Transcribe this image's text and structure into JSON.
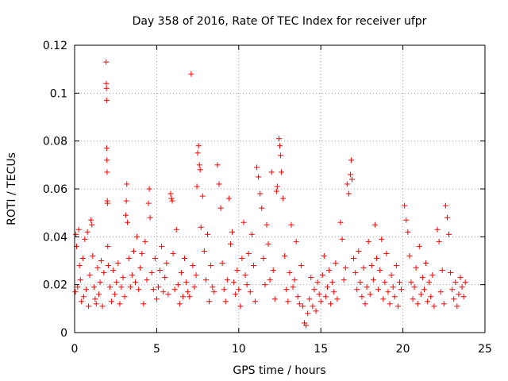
{
  "chart_data": {
    "type": "scatter",
    "title": "Day 358 of 2016, Rate Of TEC Index for receiver ufpr",
    "xlabel": "GPS time / hours",
    "ylabel": "ROTI / TECUs",
    "xlim": [
      0,
      25
    ],
    "ylim": [
      0,
      0.12
    ],
    "x_ticks": [
      0,
      5,
      10,
      15,
      20,
      25
    ],
    "x_tick_labels": [
      "0",
      "5",
      "10",
      "15",
      "20",
      "25"
    ],
    "y_ticks": [
      0,
      0.02,
      0.04,
      0.06,
      0.08,
      0.1,
      0.12
    ],
    "y_tick_labels": [
      "0",
      "0.02",
      "0.04",
      "0.06",
      "0.08",
      "0.1",
      "0.12"
    ],
    "grid": true,
    "marker": "+",
    "series": [
      {
        "name": "ROTI",
        "color": "#ff0000",
        "points": [
          [
            0.05,
            0.017
          ],
          [
            0.08,
            0.041
          ],
          [
            0.12,
            0.036
          ],
          [
            0.18,
            0.019
          ],
          [
            0.25,
            0.043
          ],
          [
            0.3,
            0.028
          ],
          [
            0.35,
            0.022
          ],
          [
            0.42,
            0.013
          ],
          [
            0.5,
            0.031
          ],
          [
            0.55,
            0.015
          ],
          [
            0.62,
            0.039
          ],
          [
            0.7,
            0.018
          ],
          [
            0.78,
            0.042
          ],
          [
            0.85,
            0.011
          ],
          [
            0.92,
            0.024
          ],
          [
            1.0,
            0.047
          ],
          [
            1.05,
            0.045
          ],
          [
            1.1,
            0.032
          ],
          [
            1.18,
            0.019
          ],
          [
            1.25,
            0.014
          ],
          [
            1.32,
            0.012
          ],
          [
            1.4,
            0.027
          ],
          [
            1.48,
            0.016
          ],
          [
            1.55,
            0.021
          ],
          [
            1.62,
            0.03
          ],
          [
            1.7,
            0.011
          ],
          [
            1.78,
            0.025
          ],
          [
            1.92,
            0.113
          ],
          [
            1.93,
            0.104
          ],
          [
            1.94,
            0.102
          ],
          [
            1.95,
            0.097
          ],
          [
            1.96,
            0.077
          ],
          [
            1.97,
            0.072
          ],
          [
            1.98,
            0.067
          ],
          [
            1.99,
            0.055
          ],
          [
            2.0,
            0.054
          ],
          [
            2.02,
            0.036
          ],
          [
            2.05,
            0.028
          ],
          [
            2.15,
            0.019
          ],
          [
            2.25,
            0.013
          ],
          [
            2.35,
            0.026
          ],
          [
            2.45,
            0.016
          ],
          [
            2.55,
            0.021
          ],
          [
            2.65,
            0.029
          ],
          [
            2.75,
            0.012
          ],
          [
            2.85,
            0.019
          ],
          [
            2.95,
            0.023
          ],
          [
            3.05,
            0.015
          ],
          [
            3.12,
            0.049
          ],
          [
            3.15,
            0.055
          ],
          [
            3.18,
            0.062
          ],
          [
            3.22,
            0.046
          ],
          [
            3.3,
            0.031
          ],
          [
            3.4,
            0.019
          ],
          [
            3.5,
            0.024
          ],
          [
            3.6,
            0.034
          ],
          [
            3.7,
            0.021
          ],
          [
            3.8,
            0.04
          ],
          [
            3.9,
            0.018
          ],
          [
            4.0,
            0.027
          ],
          [
            4.1,
            0.033
          ],
          [
            4.2,
            0.012
          ],
          [
            4.3,
            0.038
          ],
          [
            4.4,
            0.022
          ],
          [
            4.5,
            0.054
          ],
          [
            4.55,
            0.06
          ],
          [
            4.6,
            0.048
          ],
          [
            4.7,
            0.025
          ],
          [
            4.8,
            0.018
          ],
          [
            4.9,
            0.031
          ],
          [
            5.0,
            0.014
          ],
          [
            5.1,
            0.019
          ],
          [
            5.2,
            0.026
          ],
          [
            5.3,
            0.036
          ],
          [
            5.4,
            0.017
          ],
          [
            5.5,
            0.023
          ],
          [
            5.6,
            0.029
          ],
          [
            5.7,
            0.016
          ],
          [
            5.85,
            0.058
          ],
          [
            5.9,
            0.056
          ],
          [
            5.95,
            0.055
          ],
          [
            6.0,
            0.033
          ],
          [
            6.1,
            0.018
          ],
          [
            6.2,
            0.043
          ],
          [
            6.3,
            0.02
          ],
          [
            6.4,
            0.012
          ],
          [
            6.5,
            0.025
          ],
          [
            6.6,
            0.015
          ],
          [
            6.7,
            0.031
          ],
          [
            6.8,
            0.021
          ],
          [
            6.9,
            0.017
          ],
          [
            7.0,
            0.015
          ],
          [
            7.1,
            0.108
          ],
          [
            7.2,
            0.028
          ],
          [
            7.3,
            0.019
          ],
          [
            7.4,
            0.024
          ],
          [
            7.45,
            0.061
          ],
          [
            7.5,
            0.075
          ],
          [
            7.55,
            0.078
          ],
          [
            7.6,
            0.07
          ],
          [
            7.65,
            0.068
          ],
          [
            7.7,
            0.044
          ],
          [
            7.8,
            0.057
          ],
          [
            7.9,
            0.034
          ],
          [
            8.0,
            0.022
          ],
          [
            8.1,
            0.041
          ],
          [
            8.2,
            0.013
          ],
          [
            8.3,
            0.028
          ],
          [
            8.4,
            0.019
          ],
          [
            8.5,
            0.017
          ],
          [
            8.7,
            0.07
          ],
          [
            8.8,
            0.062
          ],
          [
            8.9,
            0.052
          ],
          [
            9.0,
            0.029
          ],
          [
            9.1,
            0.018
          ],
          [
            9.2,
            0.013
          ],
          [
            9.3,
            0.022
          ],
          [
            9.4,
            0.056
          ],
          [
            9.5,
            0.037
          ],
          [
            9.6,
            0.042
          ],
          [
            9.7,
            0.021
          ],
          [
            9.8,
            0.016
          ],
          [
            9.9,
            0.026
          ],
          [
            10.0,
            0.018
          ],
          [
            10.1,
            0.011
          ],
          [
            10.2,
            0.031
          ],
          [
            10.3,
            0.046
          ],
          [
            10.4,
            0.024
          ],
          [
            10.5,
            0.02
          ],
          [
            10.6,
            0.033
          ],
          [
            10.7,
            0.017
          ],
          [
            10.8,
            0.041
          ],
          [
            10.9,
            0.028
          ],
          [
            11.0,
            0.013
          ],
          [
            11.1,
            0.069
          ],
          [
            11.2,
            0.065
          ],
          [
            11.3,
            0.058
          ],
          [
            11.4,
            0.052
          ],
          [
            11.5,
            0.031
          ],
          [
            11.6,
            0.02
          ],
          [
            11.7,
            0.045
          ],
          [
            11.8,
            0.037
          ],
          [
            11.9,
            0.022
          ],
          [
            12.0,
            0.067
          ],
          [
            12.1,
            0.026
          ],
          [
            12.2,
            0.014
          ],
          [
            12.3,
            0.059
          ],
          [
            12.35,
            0.061
          ],
          [
            12.45,
            0.081
          ],
          [
            12.5,
            0.078
          ],
          [
            12.55,
            0.074
          ],
          [
            12.6,
            0.067
          ],
          [
            12.7,
            0.056
          ],
          [
            12.8,
            0.032
          ],
          [
            12.9,
            0.018
          ],
          [
            13.0,
            0.013
          ],
          [
            13.1,
            0.025
          ],
          [
            13.2,
            0.045
          ],
          [
            13.3,
            0.019
          ],
          [
            13.4,
            0.022
          ],
          [
            13.5,
            0.038
          ],
          [
            13.6,
            0.015
          ],
          [
            13.7,
            0.012
          ],
          [
            13.8,
            0.028
          ],
          [
            13.9,
            0.011
          ],
          [
            14.0,
            0.004
          ],
          [
            14.1,
            0.003
          ],
          [
            14.2,
            0.008
          ],
          [
            14.3,
            0.014
          ],
          [
            14.4,
            0.023
          ],
          [
            14.5,
            0.011
          ],
          [
            14.6,
            0.018
          ],
          [
            14.7,
            0.009
          ],
          [
            14.8,
            0.021
          ],
          [
            14.9,
            0.016
          ],
          [
            15.0,
            0.013
          ],
          [
            15.1,
            0.024
          ],
          [
            15.2,
            0.032
          ],
          [
            15.3,
            0.015
          ],
          [
            15.4,
            0.019
          ],
          [
            15.5,
            0.026
          ],
          [
            15.6,
            0.012
          ],
          [
            15.7,
            0.021
          ],
          [
            15.8,
            0.017
          ],
          [
            15.9,
            0.029
          ],
          [
            16.0,
            0.014
          ],
          [
            16.2,
            0.046
          ],
          [
            16.3,
            0.039
          ],
          [
            16.4,
            0.022
          ],
          [
            16.5,
            0.027
          ],
          [
            16.6,
            0.062
          ],
          [
            16.7,
            0.058
          ],
          [
            16.8,
            0.066
          ],
          [
            16.85,
            0.072
          ],
          [
            16.9,
            0.064
          ],
          [
            17.0,
            0.031
          ],
          [
            17.1,
            0.025
          ],
          [
            17.2,
            0.018
          ],
          [
            17.3,
            0.034
          ],
          [
            17.4,
            0.021
          ],
          [
            17.5,
            0.015
          ],
          [
            17.6,
            0.027
          ],
          [
            17.7,
            0.012
          ],
          [
            17.8,
            0.019
          ],
          [
            17.9,
            0.038
          ],
          [
            18.0,
            0.016
          ],
          [
            18.1,
            0.028
          ],
          [
            18.2,
            0.022
          ],
          [
            18.3,
            0.045
          ],
          [
            18.4,
            0.031
          ],
          [
            18.5,
            0.018
          ],
          [
            18.6,
            0.026
          ],
          [
            18.7,
            0.039
          ],
          [
            18.8,
            0.014
          ],
          [
            18.9,
            0.021
          ],
          [
            19.0,
            0.033
          ],
          [
            19.1,
            0.017
          ],
          [
            19.2,
            0.012
          ],
          [
            19.3,
            0.024
          ],
          [
            19.4,
            0.019
          ],
          [
            19.5,
            0.015
          ],
          [
            19.6,
            0.028
          ],
          [
            19.7,
            0.011
          ],
          [
            19.8,
            0.021
          ],
          [
            19.9,
            0.018
          ],
          [
            20.1,
            0.053
          ],
          [
            20.2,
            0.047
          ],
          [
            20.3,
            0.042
          ],
          [
            20.4,
            0.032
          ],
          [
            20.5,
            0.021
          ],
          [
            20.6,
            0.014
          ],
          [
            20.7,
            0.019
          ],
          [
            20.8,
            0.027
          ],
          [
            20.9,
            0.012
          ],
          [
            21.0,
            0.036
          ],
          [
            21.1,
            0.016
          ],
          [
            21.2,
            0.023
          ],
          [
            21.3,
            0.018
          ],
          [
            21.4,
            0.029
          ],
          [
            21.5,
            0.013
          ],
          [
            21.6,
            0.021
          ],
          [
            21.7,
            0.015
          ],
          [
            21.8,
            0.024
          ],
          [
            21.9,
            0.011
          ],
          [
            22.1,
            0.043
          ],
          [
            22.2,
            0.038
          ],
          [
            22.3,
            0.017
          ],
          [
            22.4,
            0.026
          ],
          [
            22.5,
            0.012
          ],
          [
            22.6,
            0.053
          ],
          [
            22.7,
            0.048
          ],
          [
            22.8,
            0.041
          ],
          [
            22.9,
            0.025
          ],
          [
            23.0,
            0.018
          ],
          [
            23.1,
            0.014
          ],
          [
            23.2,
            0.021
          ],
          [
            23.3,
            0.011
          ],
          [
            23.4,
            0.016
          ],
          [
            23.5,
            0.023
          ],
          [
            23.6,
            0.019
          ],
          [
            23.7,
            0.015
          ],
          [
            23.8,
            0.021
          ]
        ]
      }
    ]
  }
}
